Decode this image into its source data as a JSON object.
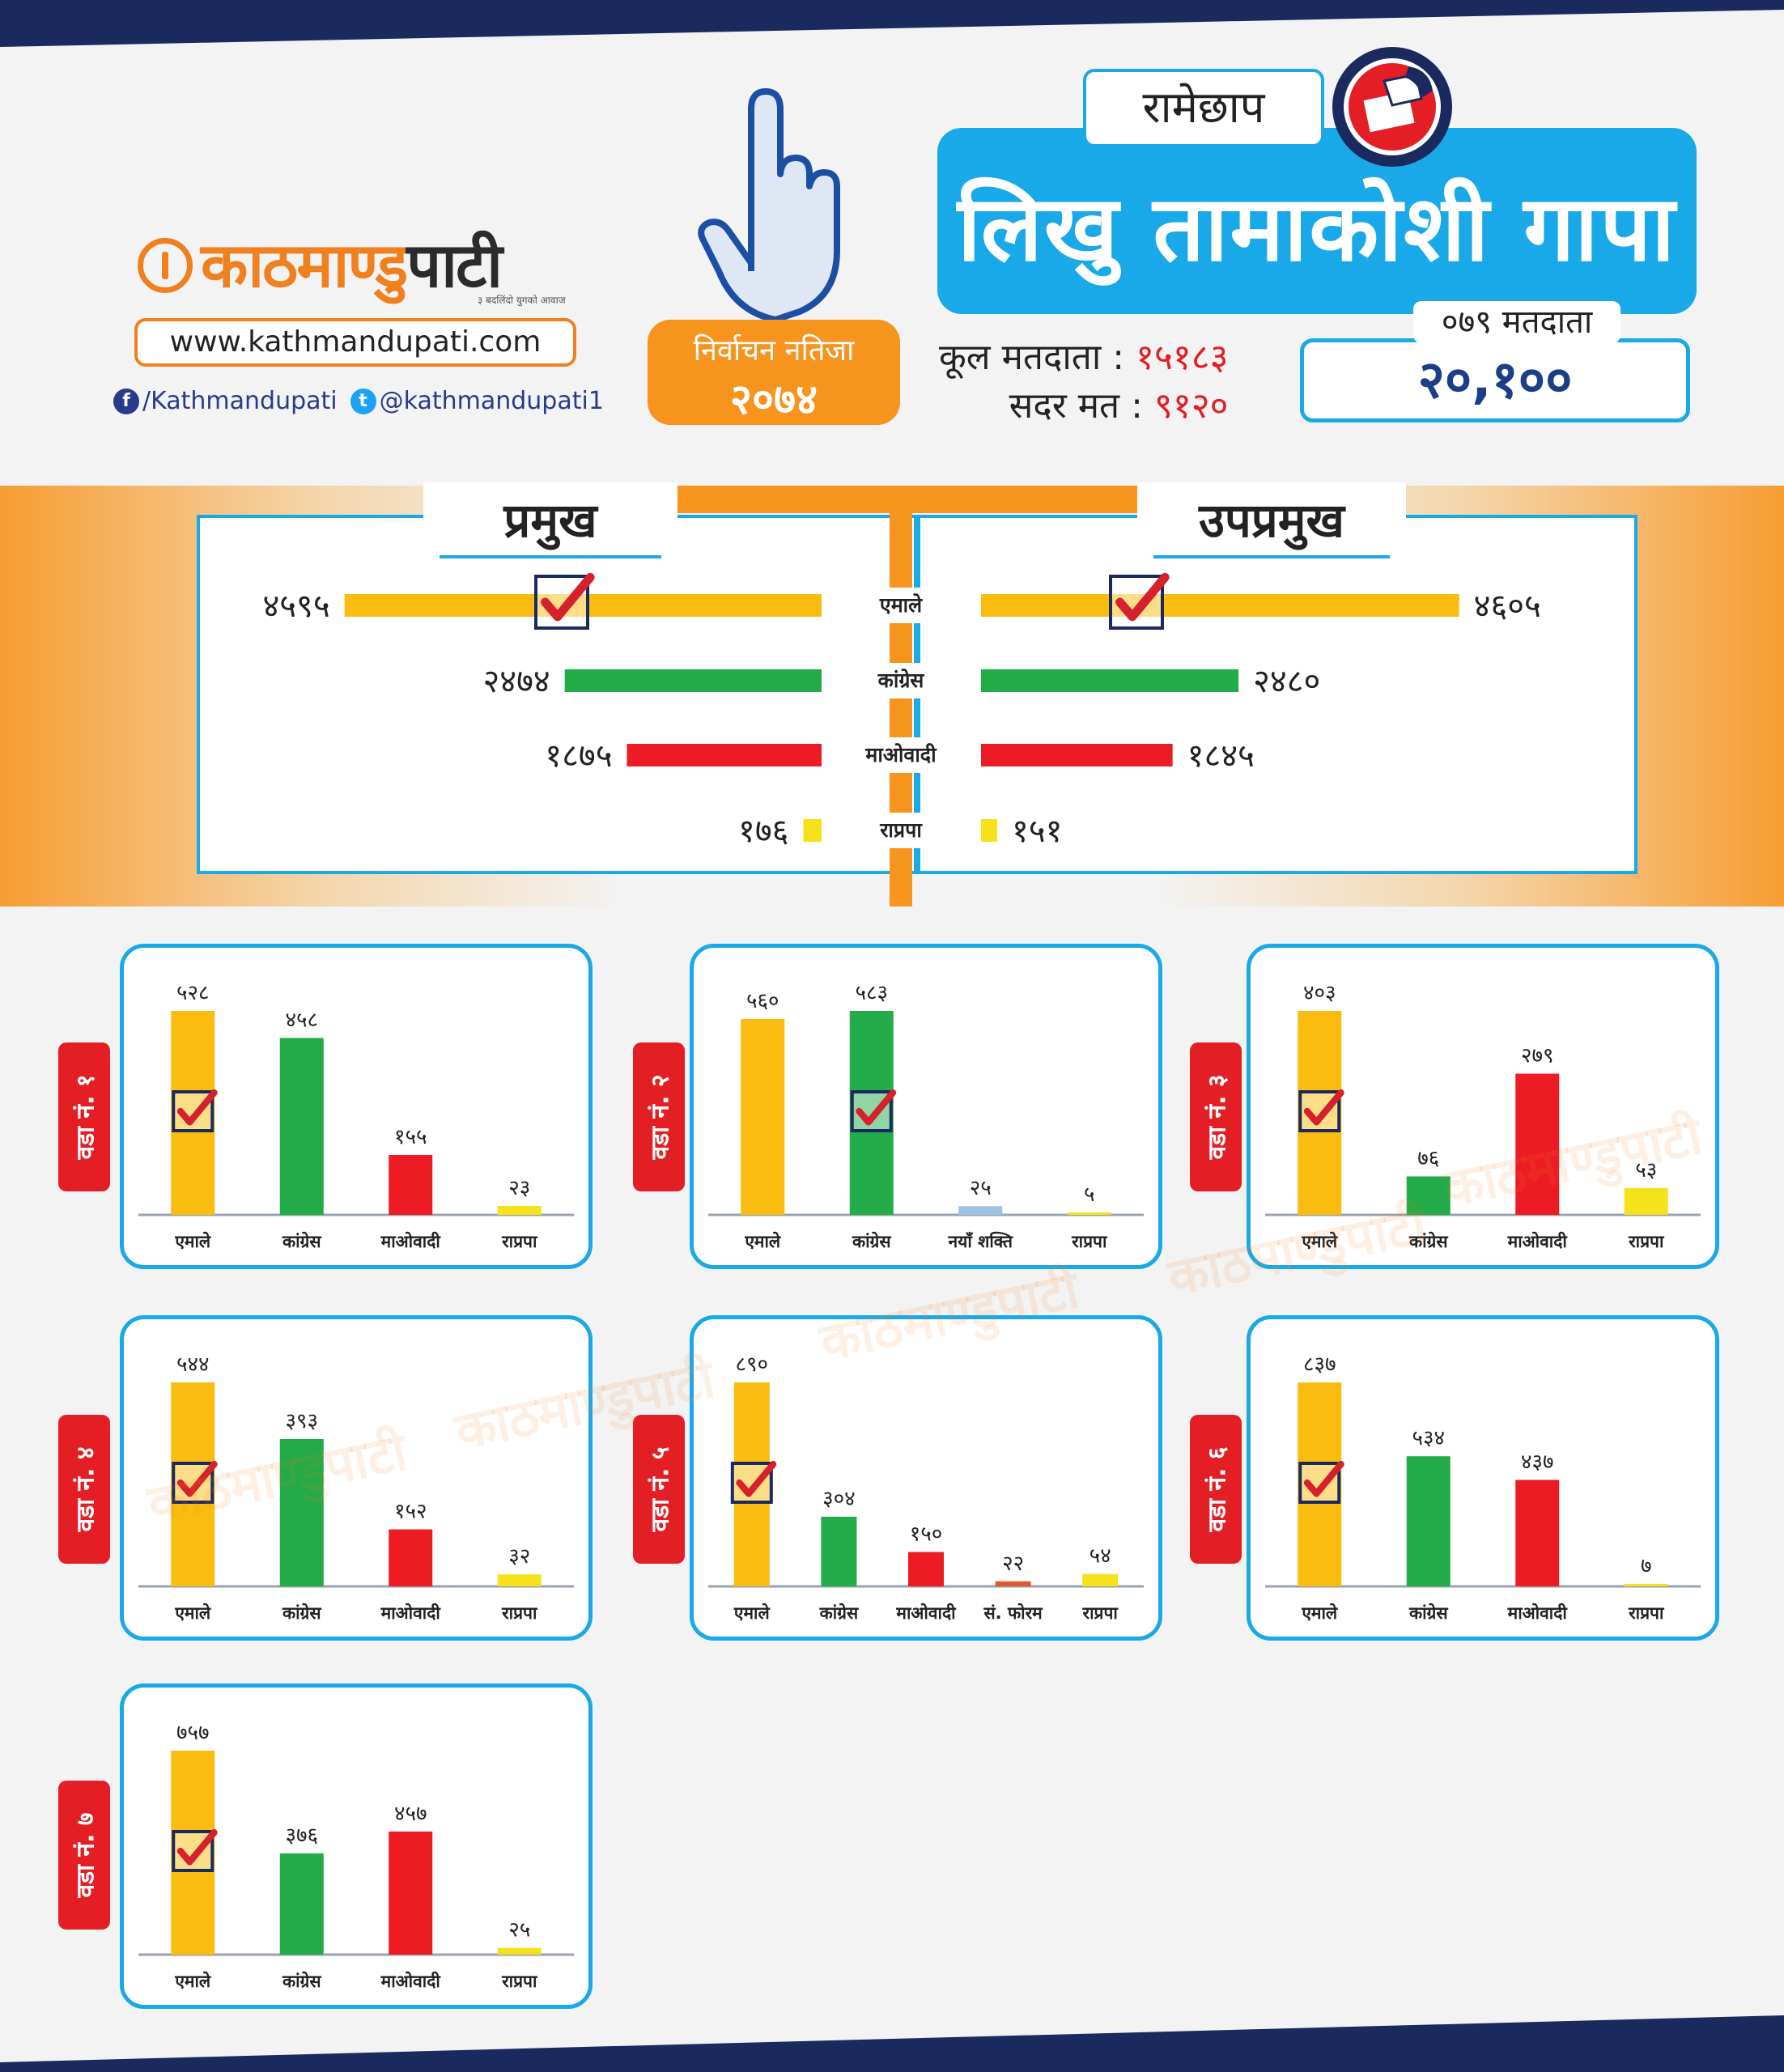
{
  "branding": {
    "logo_text_orange": "काठमाण्डु",
    "logo_text_dark": "पाटी",
    "tagline": "३ बदलिंदो युगको आवाज",
    "website": "www.kathmandupati.com",
    "facebook": "/Kathmandupati",
    "twitter": "@kathmandupati1",
    "watermark": "काठमाण्डुपाटी"
  },
  "header": {
    "result_line1": "निर्वाचन नतिजा",
    "result_line2": "२०७४",
    "district": "रामेछाप",
    "municipality": "लिखु तामाकोशी गापा",
    "total_voters_label": "कूल मतदाता :",
    "total_voters_value": "१५१८३",
    "valid_votes_label": "सदर मत :",
    "valid_votes_value": "९१२०",
    "voters_079_label": "०७९ मतदाता",
    "voters_079_value": "२०,१००"
  },
  "colors": {
    "blue": "#1aa9e8",
    "orange": "#f7941d",
    "red": "#e31e24",
    "navy": "#1b2a5e",
    "emale": "#fbbc11",
    "congress": "#22ab48",
    "maoist": "#ed1c24",
    "rpp": "#f5e21a",
    "naya_shakti": "#9fc3e4",
    "forum": "#e0592a"
  },
  "chart_data": [
    {
      "type": "bar",
      "title": "प्रमुख",
      "orientation": "horizontal",
      "categories": [
        "एमाले",
        "कांग्रेस",
        "माओवादी",
        "राप्रपा"
      ],
      "values": [
        4595,
        2474,
        1875,
        176
      ],
      "value_labels": [
        "४५९५",
        "२४७४",
        "१८७५",
        "१७६"
      ],
      "winner": "एमाले"
    },
    {
      "type": "bar",
      "title": "उपप्रमुख",
      "orientation": "horizontal",
      "categories": [
        "एमाले",
        "कांग्रेस",
        "माओवादी",
        "राप्रपा"
      ],
      "values": [
        4605,
        2480,
        1845,
        151
      ],
      "value_labels": [
        "४६०५",
        "२४८०",
        "१८४५",
        "१५१"
      ],
      "winner": "एमाले"
    },
    {
      "type": "bar",
      "title": "वडा नं. १",
      "categories": [
        "एमाले",
        "कांग्रेस",
        "माओवादी",
        "राप्रपा"
      ],
      "values": [
        528,
        458,
        155,
        23
      ],
      "value_labels": [
        "५२८",
        "४५८",
        "१५५",
        "२३"
      ],
      "winner": "एमाले"
    },
    {
      "type": "bar",
      "title": "वडा नं. २",
      "categories": [
        "एमाले",
        "कांग्रेस",
        "नयाँ शक्ति",
        "राप्रपा"
      ],
      "values": [
        560,
        583,
        25,
        5
      ],
      "value_labels": [
        "५६०",
        "५८३",
        "२५",
        "५"
      ],
      "winner": "कांग्रेस"
    },
    {
      "type": "bar",
      "title": "वडा नं. ३",
      "categories": [
        "एमाले",
        "कांग्रेस",
        "माओवादी",
        "राप्रपा"
      ],
      "values": [
        403,
        76,
        279,
        53
      ],
      "value_labels": [
        "४०३",
        "७६",
        "२७९",
        "५३"
      ],
      "winner": "एमाले"
    },
    {
      "type": "bar",
      "title": "वडा नं. ४",
      "categories": [
        "एमाले",
        "कांग्रेस",
        "माओवादी",
        "राप्रपा"
      ],
      "values": [
        544,
        393,
        152,
        32
      ],
      "value_labels": [
        "५४४",
        "३९३",
        "१५२",
        "३२"
      ],
      "winner": "एमाले"
    },
    {
      "type": "bar",
      "title": "वडा नं. ५",
      "categories": [
        "एमाले",
        "कांग्रेस",
        "माओवादी",
        "सं. फोरम",
        "राप्रपा"
      ],
      "values": [
        890,
        304,
        150,
        22,
        54
      ],
      "value_labels": [
        "८९०",
        "३०४",
        "१५०",
        "२२",
        "५४"
      ],
      "winner": "एमाले"
    },
    {
      "type": "bar",
      "title": "वडा नं. ६",
      "categories": [
        "एमाले",
        "कांग्रेस",
        "माओवादी",
        "राप्रपा"
      ],
      "values": [
        837,
        534,
        437,
        7
      ],
      "value_labels": [
        "८३७",
        "५३४",
        "४३७",
        "७"
      ],
      "winner": "एमाले"
    },
    {
      "type": "bar",
      "title": "वडा नं. ७",
      "categories": [
        "एमाले",
        "कांग्रेस",
        "माओवादी",
        "राप्रपा"
      ],
      "values": [
        757,
        376,
        457,
        25
      ],
      "value_labels": [
        "७५७",
        "३७६",
        "४५७",
        "२५"
      ],
      "winner": "एमाले"
    }
  ]
}
